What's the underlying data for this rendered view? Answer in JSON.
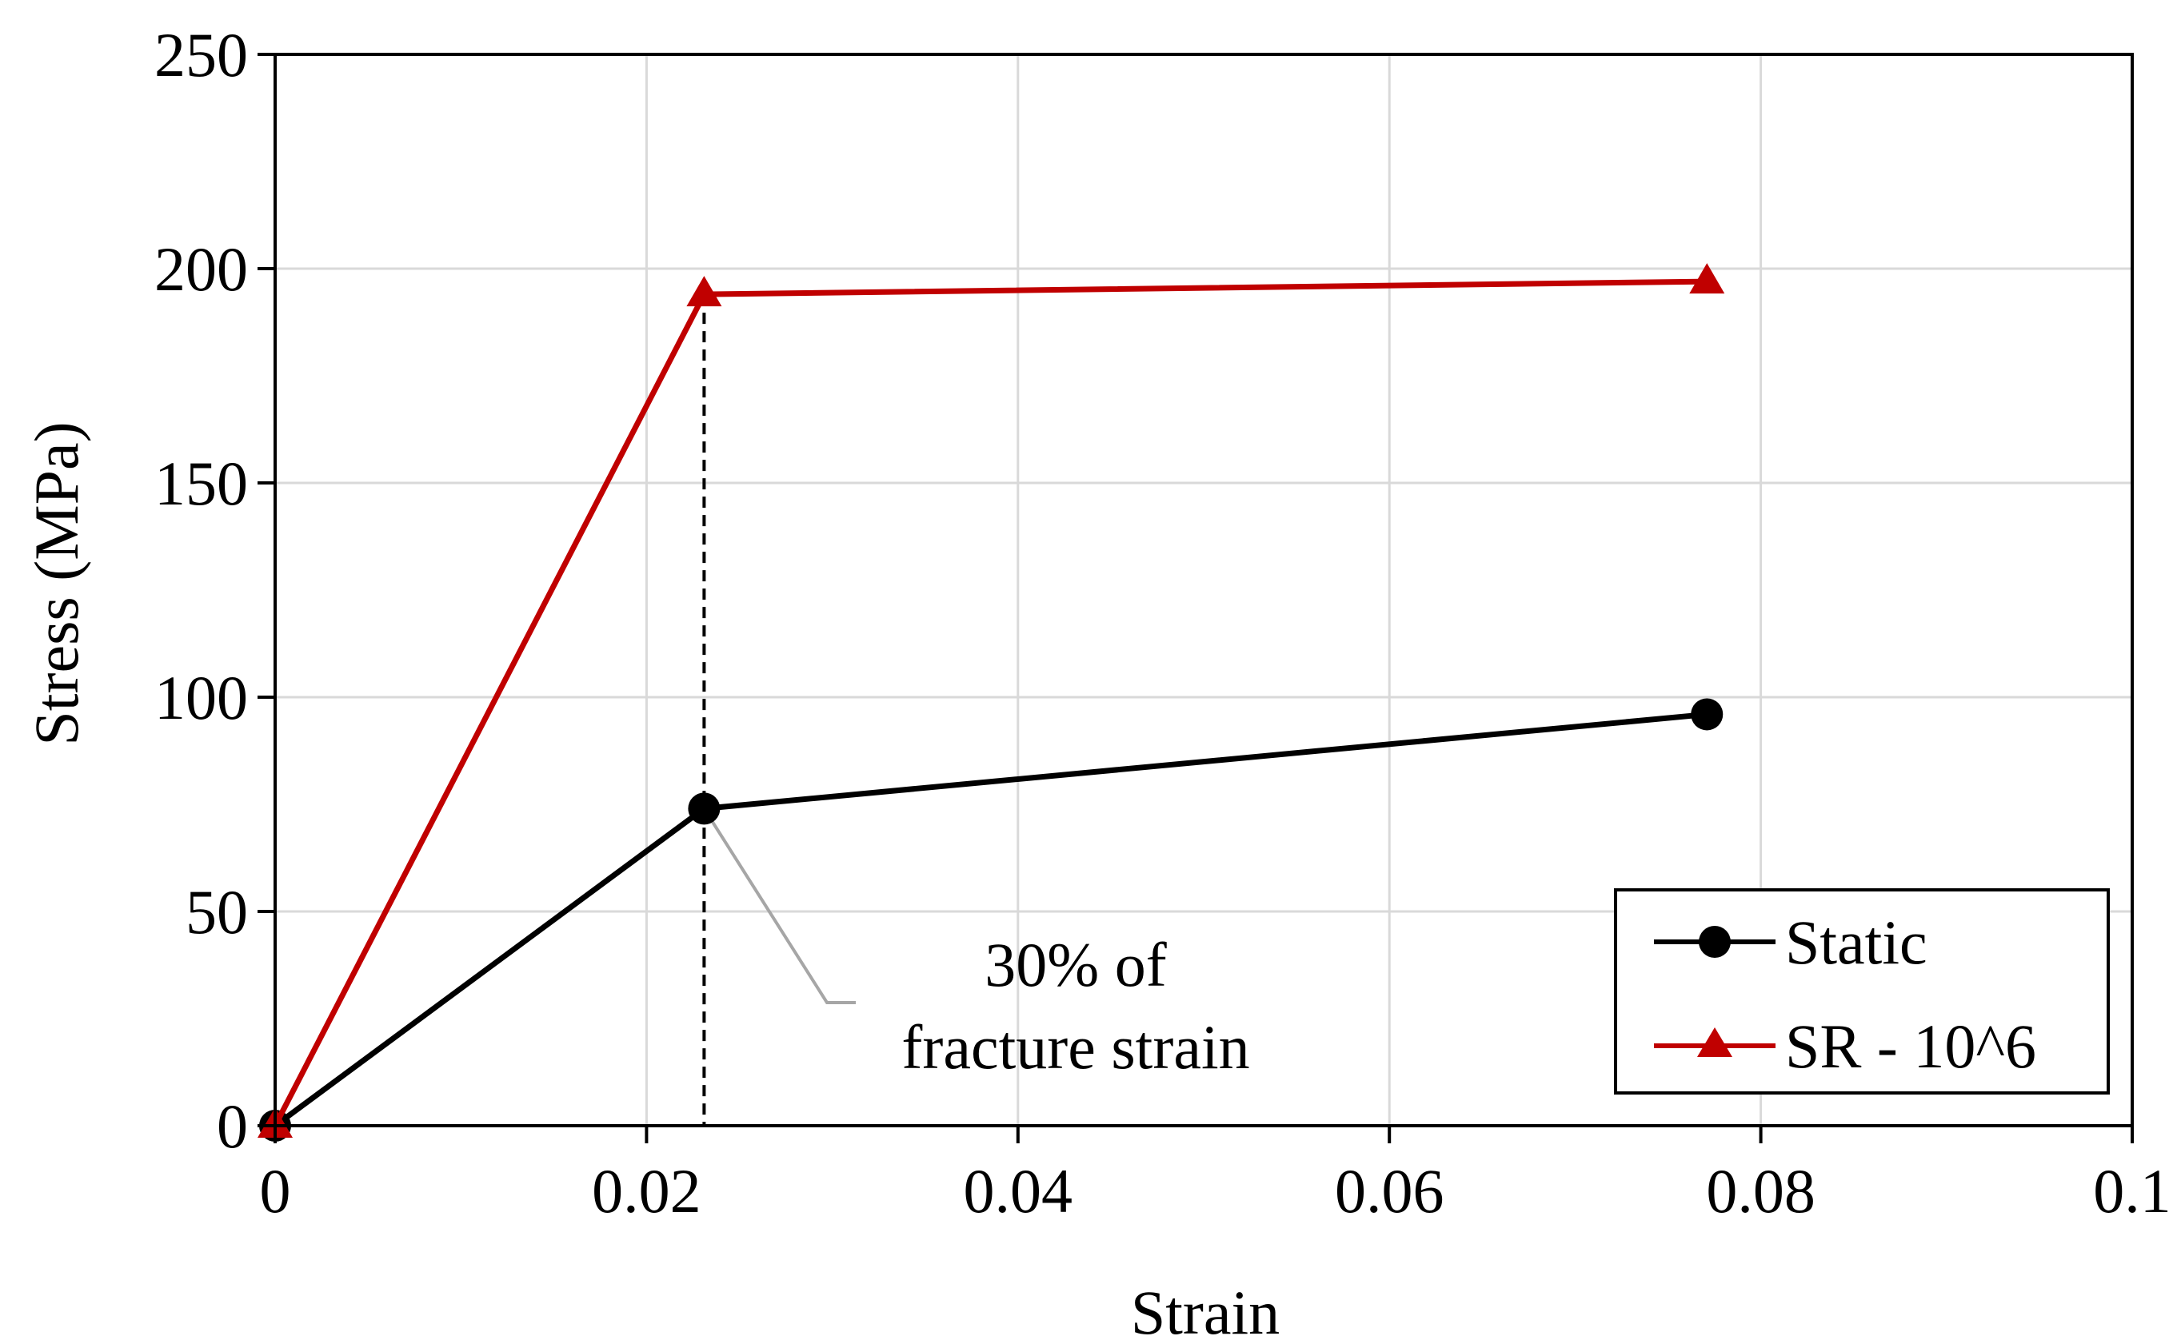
{
  "chart_data": {
    "type": "line",
    "title": "",
    "xlabel": "Strain",
    "ylabel": "Stress (MPa)",
    "xlim": [
      0,
      0.1
    ],
    "ylim": [
      0,
      250
    ],
    "xticks": [
      0,
      0.02,
      0.04,
      0.06,
      0.08,
      0.1
    ],
    "xtick_labels": [
      "0",
      "0.02",
      "0.04",
      "0.06",
      "0.08",
      "0.1"
    ],
    "yticks": [
      0,
      50,
      100,
      150,
      200,
      250
    ],
    "ytick_labels": [
      "0",
      "50",
      "100",
      "150",
      "200",
      "250"
    ],
    "grid": true,
    "legend_position": "bottom-right",
    "series": [
      {
        "name": "Static",
        "marker": "circle",
        "color": "#000000",
        "x": [
          0,
          0.0231,
          0.0771
        ],
        "y": [
          0,
          74,
          96
        ]
      },
      {
        "name": "SR - 10^6",
        "marker": "triangle",
        "color": "#c00000",
        "x": [
          0,
          0.0231,
          0.0771
        ],
        "y": [
          0,
          194,
          197
        ]
      }
    ],
    "annotations": [
      {
        "lines": [
          "30% of",
          "fracture strain"
        ],
        "points_to": {
          "x": 0.0231,
          "y": 74
        },
        "vertical_dashed_line_x": 0.0231
      }
    ]
  }
}
